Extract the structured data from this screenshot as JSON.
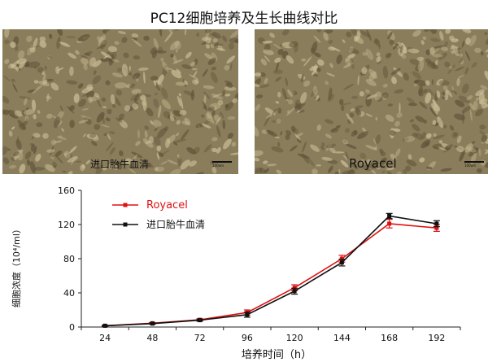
{
  "title": "PC12细胞培养及生长曲线对比",
  "photos": [
    {
      "caption": "进口胎牛血清",
      "scale": "100um"
    },
    {
      "caption": "Royacel",
      "scale": "100um"
    }
  ],
  "colors": {
    "royacel": "#dd1111",
    "fbs": "#111111"
  },
  "chart_data": {
    "type": "line",
    "title": "",
    "xlabel": "培养时间（h）",
    "ylabel": "细胞浓度（10⁴/ml）",
    "x": [
      24,
      48,
      72,
      96,
      120,
      144,
      168,
      192
    ],
    "ylim": [
      0,
      160
    ],
    "yticks": [
      0,
      40,
      80,
      120,
      160
    ],
    "grid": false,
    "legend": "top-left",
    "series": [
      {
        "name": "Royacel",
        "values": [
          1.5,
          4.5,
          8.5,
          17,
          46,
          80,
          121,
          116
        ],
        "errors": [
          0.5,
          0.8,
          1.2,
          3,
          3.5,
          4,
          5,
          4
        ]
      },
      {
        "name": "进口胎牛血清",
        "values": [
          1.5,
          4,
          8,
          14.5,
          42,
          75.5,
          130,
          121
        ],
        "errors": [
          0.5,
          0.8,
          1.2,
          3,
          3.5,
          4,
          3,
          3.5
        ]
      }
    ]
  }
}
